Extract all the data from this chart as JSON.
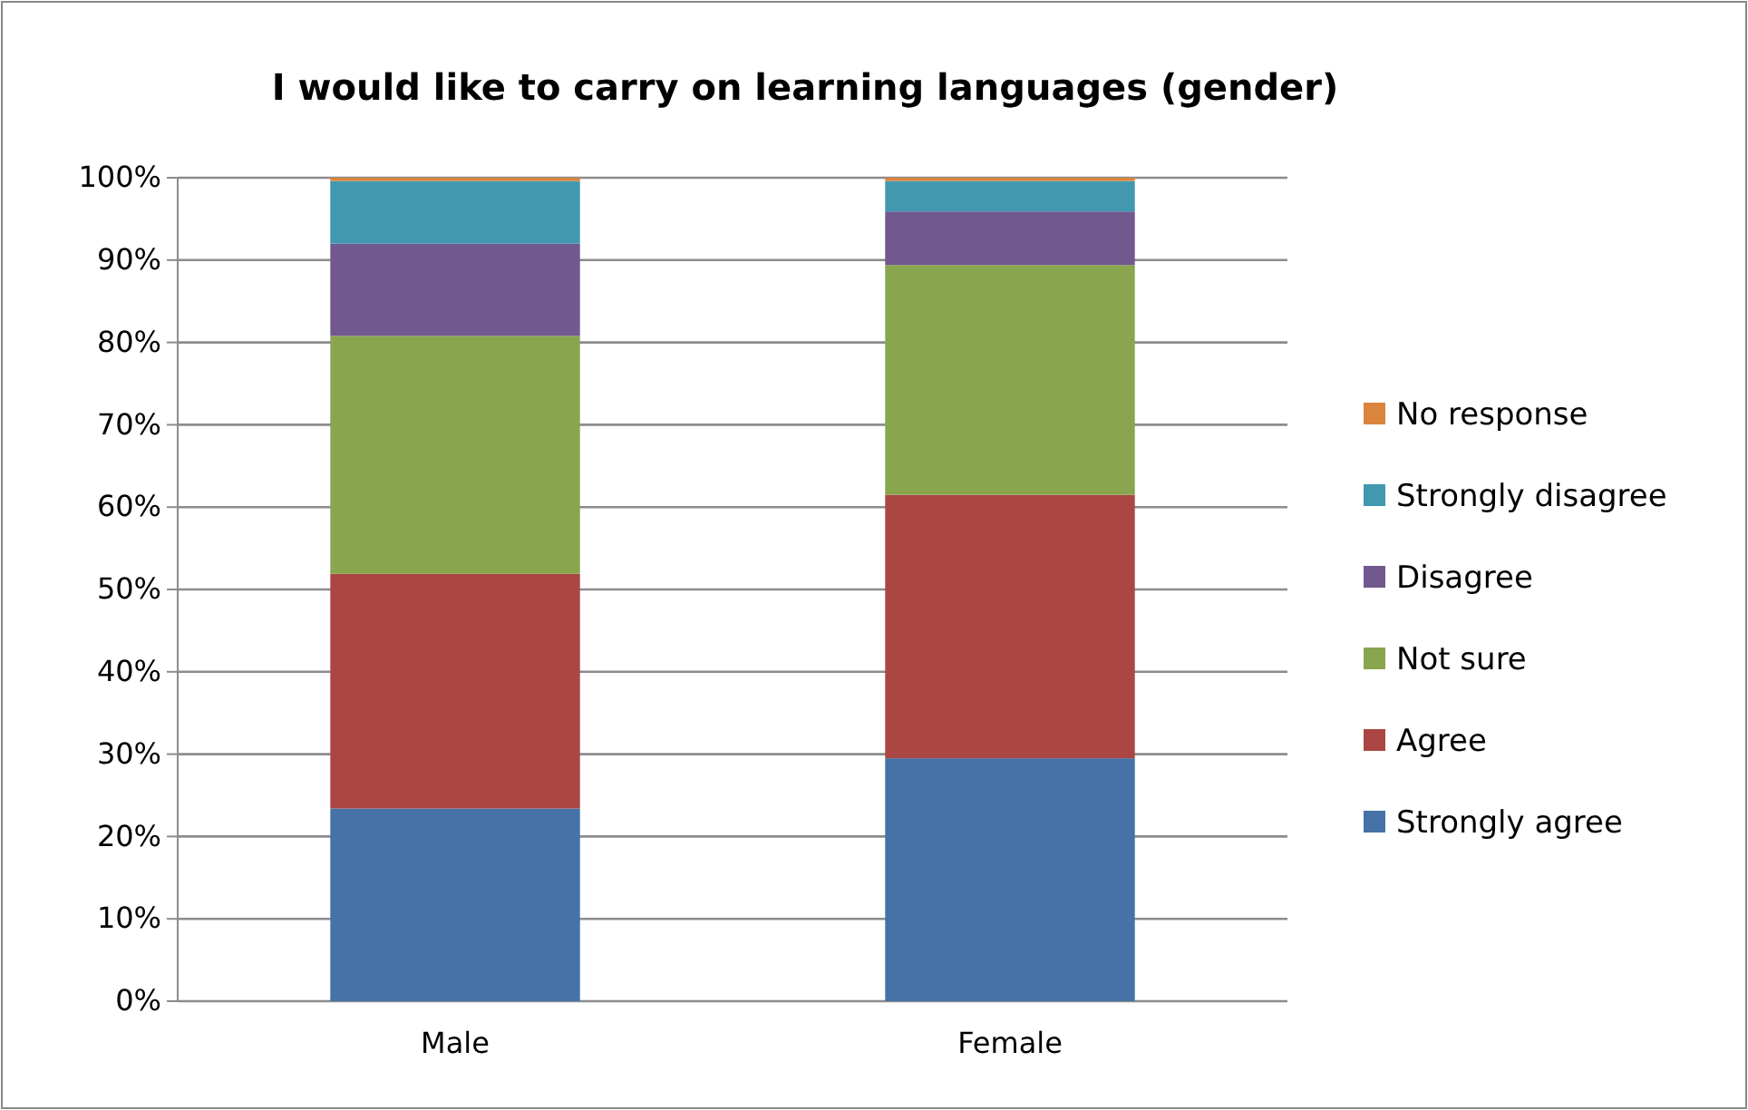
{
  "chart_data": {
    "type": "bar",
    "stacked": true,
    "title": "I would like to carry on learning languages (gender)",
    "categories": [
      "Male",
      "Female"
    ],
    "series": [
      {
        "name": "Strongly agree",
        "color": "#4572a7",
        "values": [
          23.4,
          29.5
        ]
      },
      {
        "name": "Agree",
        "color": "#aa4643",
        "values": [
          28.5,
          32.0
        ]
      },
      {
        "name": "Not sure",
        "color": "#89a54e",
        "values": [
          28.9,
          27.9
        ]
      },
      {
        "name": "Disagree",
        "color": "#71588f",
        "values": [
          11.2,
          6.5
        ]
      },
      {
        "name": "Strongly disagree",
        "color": "#4198af",
        "values": [
          7.6,
          3.7
        ]
      },
      {
        "name": "No response",
        "color": "#db843d",
        "values": [
          0.4,
          0.4
        ]
      }
    ],
    "ylim": [
      0,
      100
    ],
    "yticks": [
      {
        "value": 0,
        "label": "0%"
      },
      {
        "value": 10,
        "label": "10%"
      },
      {
        "value": 20,
        "label": "20%"
      },
      {
        "value": 30,
        "label": "30%"
      },
      {
        "value": 40,
        "label": "40%"
      },
      {
        "value": 50,
        "label": "50%"
      },
      {
        "value": 60,
        "label": "60%"
      },
      {
        "value": 70,
        "label": "70%"
      },
      {
        "value": 80,
        "label": "80%"
      },
      {
        "value": 90,
        "label": "90%"
      },
      {
        "value": 100,
        "label": "100%"
      }
    ],
    "grid": "y",
    "legend": "right"
  }
}
